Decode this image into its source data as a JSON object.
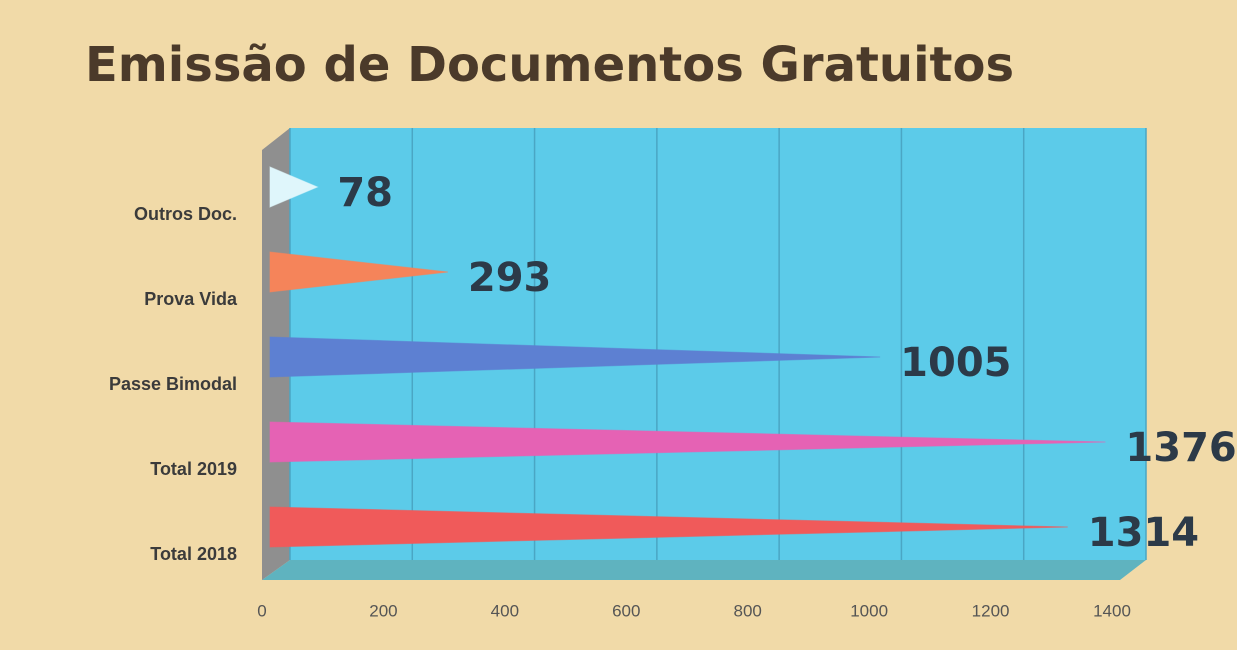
{
  "chart_data": {
    "type": "bar",
    "orientation": "horizontal",
    "title": "Emissão de Documentos Gratuitos",
    "categories": [
      "Outros Doc.",
      "Prova Vida",
      "Passe Bimodal",
      "Total 2019",
      "Total 2018"
    ],
    "values": [
      78,
      293,
      1005,
      1376,
      1314
    ],
    "colors": [
      "#dff6fb",
      "#f5845a",
      "#5d80d2",
      "#e562b4",
      "#f05a5a"
    ],
    "xlim": [
      0,
      1400
    ],
    "xticks": [
      0,
      200,
      400,
      600,
      800,
      1000,
      1200,
      1400
    ],
    "grid": true
  }
}
